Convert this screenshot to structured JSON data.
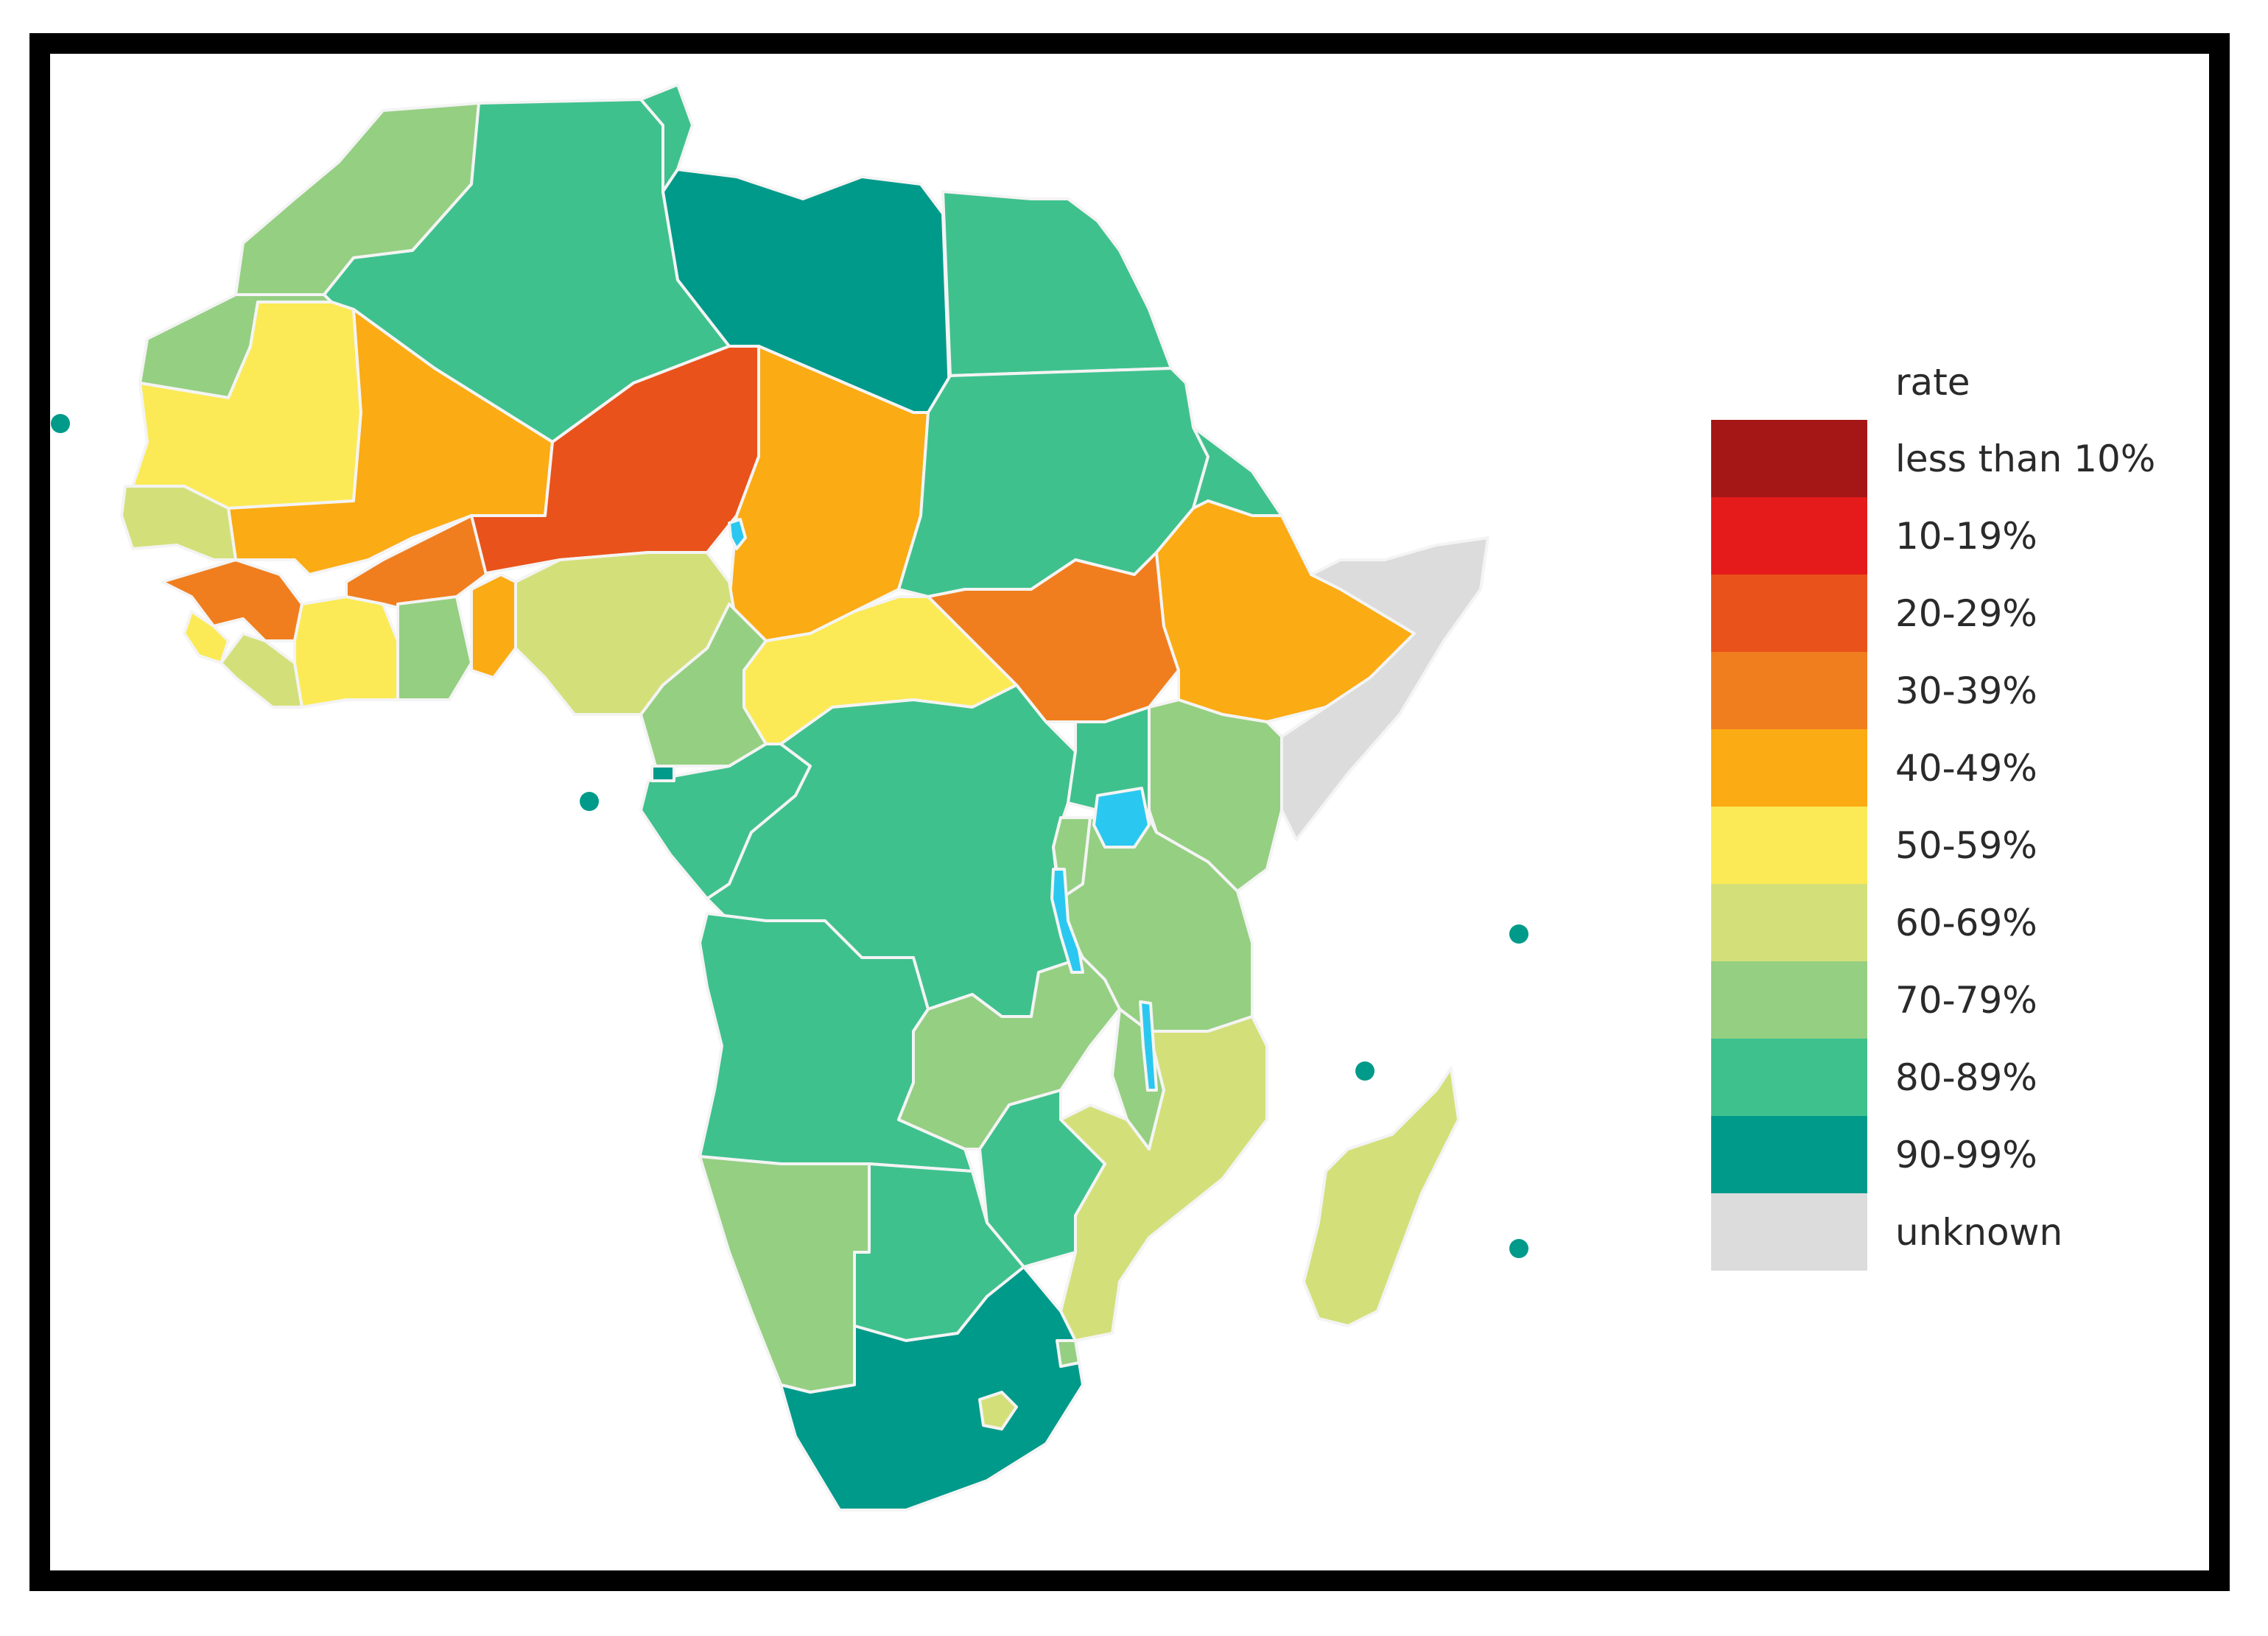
{
  "legend": {
    "title": "rate",
    "categories": [
      {
        "label": "less than 10%",
        "color": "#a51616"
      },
      {
        "label": "10-19%",
        "color": "#e51b1b"
      },
      {
        "label": "20-29%",
        "color": "#e9521b"
      },
      {
        "label": "30-39%",
        "color": "#f07e1e"
      },
      {
        "label": "40-49%",
        "color": "#fbab13"
      },
      {
        "label": "50-59%",
        "color": "#fbea55"
      },
      {
        "label": "60-69%",
        "color": "#d3e07a"
      },
      {
        "label": "70-79%",
        "color": "#95cf82"
      },
      {
        "label": "80-89%",
        "color": "#3fc18e"
      },
      {
        "label": "90-99%",
        "color": "#009a8a"
      },
      {
        "label": "unknown",
        "color": "#dcdcdc"
      }
    ]
  },
  "colors": {
    "water": "#2ac8f0",
    "frame": "#000000"
  },
  "regions": [
    {
      "name": "morocco",
      "rate": "70-79%"
    },
    {
      "name": "western-sahara",
      "rate": "70-79%"
    },
    {
      "name": "algeria",
      "rate": "80-89%"
    },
    {
      "name": "tunisia",
      "rate": "80-89%"
    },
    {
      "name": "libya",
      "rate": "90-99%"
    },
    {
      "name": "egypt",
      "rate": "80-89%"
    },
    {
      "name": "mauritania",
      "rate": "50-59%"
    },
    {
      "name": "mali",
      "rate": "40-49%"
    },
    {
      "name": "niger",
      "rate": "20-29%"
    },
    {
      "name": "chad",
      "rate": "40-49%"
    },
    {
      "name": "sudan",
      "rate": "80-89%"
    },
    {
      "name": "eritrea",
      "rate": "80-89%"
    },
    {
      "name": "senegal",
      "rate": "60-69%"
    },
    {
      "name": "guinea",
      "rate": "30-39%"
    },
    {
      "name": "sierra-leone",
      "rate": "50-59%"
    },
    {
      "name": "liberia",
      "rate": "60-69%"
    },
    {
      "name": "ivory-coast",
      "rate": "50-59%"
    },
    {
      "name": "burkina-faso",
      "rate": "30-39%"
    },
    {
      "name": "ghana",
      "rate": "70-79%"
    },
    {
      "name": "togo-benin",
      "rate": "40-49%"
    },
    {
      "name": "nigeria",
      "rate": "60-69%"
    },
    {
      "name": "cameroon",
      "rate": "70-79%"
    },
    {
      "name": "central-african-republic",
      "rate": "50-59%"
    },
    {
      "name": "south-sudan",
      "rate": "30-39%"
    },
    {
      "name": "ethiopia",
      "rate": "40-49%"
    },
    {
      "name": "somalia",
      "rate": "unknown"
    },
    {
      "name": "gabon-congo",
      "rate": "80-89%"
    },
    {
      "name": "dr-congo",
      "rate": "80-89%"
    },
    {
      "name": "uganda",
      "rate": "80-89%"
    },
    {
      "name": "kenya",
      "rate": "70-79%"
    },
    {
      "name": "rwanda-burundi",
      "rate": "70-79%"
    },
    {
      "name": "tanzania",
      "rate": "70-79%"
    },
    {
      "name": "angola",
      "rate": "80-89%"
    },
    {
      "name": "zambia",
      "rate": "70-79%"
    },
    {
      "name": "malawi",
      "rate": "70-79%"
    },
    {
      "name": "mozambique",
      "rate": "60-69%"
    },
    {
      "name": "zimbabwe",
      "rate": "80-89%"
    },
    {
      "name": "namibia",
      "rate": "70-79%"
    },
    {
      "name": "botswana",
      "rate": "80-89%"
    },
    {
      "name": "south-africa",
      "rate": "90-99%"
    },
    {
      "name": "lesotho",
      "rate": "60-69%"
    },
    {
      "name": "swaziland",
      "rate": "70-79%"
    },
    {
      "name": "madagascar",
      "rate": "60-69%"
    },
    {
      "name": "equatorial-guinea",
      "rate": "90-99%"
    },
    {
      "name": "cape-verde",
      "rate": "90-99%"
    },
    {
      "name": "sao-tome",
      "rate": "90-99%"
    },
    {
      "name": "seychelles",
      "rate": "90-99%"
    },
    {
      "name": "comoros",
      "rate": "90-99%"
    },
    {
      "name": "mauritius",
      "rate": "90-99%"
    }
  ]
}
